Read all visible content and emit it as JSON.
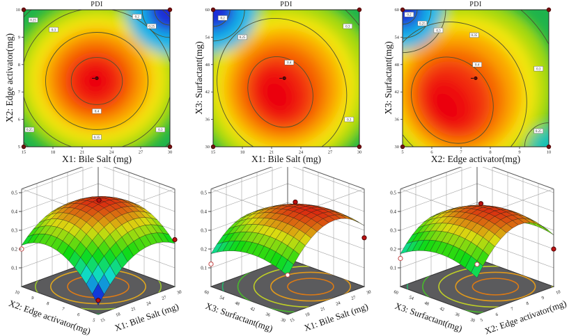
{
  "figure": {
    "background": "#ffffff",
    "palette": {
      "blue": "#1d2fd8",
      "cyan": "#12b6e8",
      "green": "#1eb34c",
      "yellow_green": "#a8d90f",
      "yellow": "#f4e609",
      "amber": "#fba603",
      "orange": "#f66a05",
      "red_orange": "#f23109",
      "red": "#ee0d10",
      "floor_gray": "#5b5b5d",
      "design_point": "#7c0c0c"
    }
  },
  "chart_data": [
    {
      "type": "contour",
      "title": "PDI",
      "xlabel": "X1: Bile Salt (mg)",
      "ylabel": "X2: Edge activator(mg)",
      "xlim": [
        15,
        30
      ],
      "ylim": [
        5,
        10
      ],
      "x_ticks": [
        15,
        18,
        21,
        24,
        27,
        30
      ],
      "y_ticks": [
        5,
        6,
        7,
        8,
        9,
        10
      ],
      "z_levels": [
        0.2,
        0.25,
        0.3,
        0.35,
        0.4
      ],
      "optimum": {
        "x": 22.5,
        "y": 7.5
      },
      "base": "#1eb34c",
      "blobs": [
        {
          "cx": 0.5,
          "cy": 0.51,
          "rx": 0.58,
          "ry": 0.58,
          "rot": 0,
          "c": "#a8d90f"
        },
        {
          "cx": 0.5,
          "cy": 0.51,
          "rx": 0.475,
          "ry": 0.475,
          "rot": 0,
          "c": "#f4e609"
        },
        {
          "cx": 0.5,
          "cy": 0.51,
          "rx": 0.375,
          "ry": 0.375,
          "rot": 0,
          "c": "#fba603"
        },
        {
          "cx": 0.49,
          "cy": 0.51,
          "rx": 0.285,
          "ry": 0.29,
          "rot": 0,
          "c": "#f66a05"
        },
        {
          "cx": 0.49,
          "cy": 0.52,
          "rx": 0.205,
          "ry": 0.21,
          "rot": 0,
          "c": "#f23109"
        },
        {
          "cx": 0.49,
          "cy": 0.52,
          "rx": 0.13,
          "ry": 0.135,
          "rot": 0,
          "c": "#ee0d10"
        },
        {
          "cx": 0.49,
          "cy": 0.52,
          "rx": 0.065,
          "ry": 0.07,
          "rot": 0,
          "c": "#ea0511"
        },
        {
          "cx": 1.0,
          "cy": 0.0,
          "rx": 0.3,
          "ry": 0.32,
          "rot": 0,
          "c": "#12b6e8"
        },
        {
          "cx": 1.0,
          "cy": 0.0,
          "rx": 0.155,
          "ry": 0.165,
          "rot": 0,
          "c": "#1d2fd8"
        }
      ],
      "rings": [
        {
          "cx": 0.5,
          "cy": 0.52,
          "rx": 0.175,
          "ry": 0.172,
          "rot": 0
        },
        {
          "cx": 0.5,
          "cy": 0.52,
          "rx": 0.35,
          "ry": 0.355,
          "rot": 0
        },
        {
          "cx": 0.5,
          "cy": 0.51,
          "rx": 0.515,
          "ry": 0.52,
          "rot": 0
        },
        {
          "cx": 0.5,
          "cy": 0.51,
          "rx": 0.67,
          "ry": 0.685,
          "rot": 0
        },
        {
          "cx": 1.0,
          "cy": 0.0,
          "rx": 0.105,
          "ry": 0.112,
          "rot": 0
        },
        {
          "cx": 1.0,
          "cy": 0.0,
          "rx": 0.19,
          "ry": 0.202,
          "rot": 0
        }
      ],
      "labels": [
        {
          "v": "0.25",
          "x": 0.065,
          "y": 0.075
        },
        {
          "v": "0.3",
          "x": 0.205,
          "y": 0.145
        },
        {
          "v": "0.2",
          "x": 0.775,
          "y": 0.05
        },
        {
          "v": "0.25",
          "x": 0.875,
          "y": 0.12
        },
        {
          "v": "0.4",
          "x": 0.5,
          "y": 0.74
        },
        {
          "v": "0.35",
          "x": 0.5,
          "y": 0.93
        },
        {
          "v": "0.25",
          "x": 0.04,
          "y": 0.875
        },
        {
          "v": "0.3",
          "x": 0.935,
          "y": 0.875
        }
      ]
    },
    {
      "type": "contour",
      "title": "PDI",
      "xlabel": "X1: Bile Salt (mg)",
      "ylabel": "X3: Surfactant(mg)",
      "xlim": [
        15,
        30
      ],
      "ylim": [
        30,
        60
      ],
      "x_ticks": [
        15,
        18,
        21,
        24,
        27,
        30
      ],
      "y_ticks": [
        30,
        36,
        42,
        48,
        54,
        60
      ],
      "z_levels": [
        0.2,
        0.25,
        0.3,
        0.35,
        0.4
      ],
      "optimum": {
        "x": 22.3,
        "y": 45
      },
      "base": "#1eb34c",
      "blobs": [
        {
          "cx": 0.5,
          "cy": 0.55,
          "rx": 0.62,
          "ry": 0.63,
          "rot": -28,
          "c": "#a8d90f"
        },
        {
          "cx": 0.49,
          "cy": 0.56,
          "rx": 0.5,
          "ry": 0.53,
          "rot": -28,
          "c": "#f4e609"
        },
        {
          "cx": 0.48,
          "cy": 0.57,
          "rx": 0.405,
          "ry": 0.43,
          "rot": -28,
          "c": "#fba603"
        },
        {
          "cx": 0.47,
          "cy": 0.58,
          "rx": 0.31,
          "ry": 0.34,
          "rot": -28,
          "c": "#f66a05"
        },
        {
          "cx": 0.46,
          "cy": 0.6,
          "rx": 0.22,
          "ry": 0.26,
          "rot": -28,
          "c": "#f23109"
        },
        {
          "cx": 0.44,
          "cy": 0.61,
          "rx": 0.145,
          "ry": 0.19,
          "rot": -28,
          "c": "#ee0d10"
        },
        {
          "cx": 0.43,
          "cy": 0.63,
          "rx": 0.075,
          "ry": 0.105,
          "rot": -28,
          "c": "#ea0511"
        },
        {
          "cx": 0.0,
          "cy": 0.0,
          "rx": 0.3,
          "ry": 0.31,
          "rot": 0,
          "c": "#12b6e8"
        },
        {
          "cx": 0.0,
          "cy": 0.0,
          "rx": 0.15,
          "ry": 0.16,
          "rot": 0,
          "c": "#1d2fd8"
        }
      ],
      "rings": [
        {
          "cx": 0.46,
          "cy": 0.6,
          "rx": 0.215,
          "ry": 0.265,
          "rot": -28
        },
        {
          "cx": 0.47,
          "cy": 0.57,
          "rx": 0.43,
          "ry": 0.52,
          "rot": -28
        },
        {
          "cx": 0.49,
          "cy": 0.55,
          "rx": 0.65,
          "ry": 0.78,
          "rot": -28
        },
        {
          "cx": 0.0,
          "cy": 0.0,
          "rx": 0.115,
          "ry": 0.122,
          "rot": 0
        },
        {
          "cx": 0.0,
          "cy": 0.0,
          "rx": 0.215,
          "ry": 0.228,
          "rot": 0
        }
      ],
      "labels": [
        {
          "v": "0.2",
          "x": 0.065,
          "y": 0.06
        },
        {
          "v": "0.25",
          "x": 0.2,
          "y": 0.2
        },
        {
          "v": "0.4",
          "x": 0.52,
          "y": 0.385
        },
        {
          "v": "0.3",
          "x": 0.92,
          "y": 0.12
        },
        {
          "v": "0.3",
          "x": 0.93,
          "y": 0.8
        }
      ]
    },
    {
      "type": "contour",
      "title": "PDI",
      "xlabel": "X2: Edge activator(mg)",
      "ylabel": "X3: Surfactant(mg)",
      "xlim": [
        5,
        10
      ],
      "ylim": [
        30,
        60
      ],
      "x_ticks": [
        5,
        6,
        7,
        8,
        9,
        10
      ],
      "y_ticks": [
        30,
        36,
        42,
        48,
        54,
        60
      ],
      "z_levels": [
        0.2,
        0.25,
        0.3,
        0.35,
        0.4
      ],
      "optimum": {
        "x": 7.5,
        "y": 45
      },
      "base": "#1eb34c",
      "blobs": [
        {
          "cx": 0.43,
          "cy": 0.57,
          "rx": 0.62,
          "ry": 0.65,
          "rot": -35,
          "c": "#a8d90f"
        },
        {
          "cx": 0.41,
          "cy": 0.59,
          "rx": 0.515,
          "ry": 0.55,
          "rot": -35,
          "c": "#f4e609"
        },
        {
          "cx": 0.39,
          "cy": 0.61,
          "rx": 0.42,
          "ry": 0.46,
          "rot": -35,
          "c": "#fba603"
        },
        {
          "cx": 0.37,
          "cy": 0.63,
          "rx": 0.325,
          "ry": 0.37,
          "rot": -35,
          "c": "#f66a05"
        },
        {
          "cx": 0.35,
          "cy": 0.65,
          "rx": 0.235,
          "ry": 0.285,
          "rot": -35,
          "c": "#f23109"
        },
        {
          "cx": 0.32,
          "cy": 0.68,
          "rx": 0.15,
          "ry": 0.205,
          "rot": -35,
          "c": "#ee0d10"
        },
        {
          "cx": 0.29,
          "cy": 0.71,
          "rx": 0.075,
          "ry": 0.115,
          "rot": -35,
          "c": "#ea0511"
        },
        {
          "cx": 0.0,
          "cy": 0.0,
          "rx": 0.28,
          "ry": 0.29,
          "rot": 0,
          "c": "#12b6e8"
        },
        {
          "cx": 0.0,
          "cy": 0.0,
          "rx": 0.135,
          "ry": 0.14,
          "rot": 0,
          "c": "#1d2fd8"
        },
        {
          "cx": 1.0,
          "cy": 1.0,
          "rx": 0.135,
          "ry": 0.14,
          "rot": 0,
          "c": "#16c2b4"
        }
      ],
      "rings": [
        {
          "cx": 0.34,
          "cy": 0.66,
          "rx": 0.265,
          "ry": 0.33,
          "rot": -35
        },
        {
          "cx": 0.37,
          "cy": 0.62,
          "rx": 0.46,
          "ry": 0.55,
          "rot": -35
        },
        {
          "cx": 0.41,
          "cy": 0.57,
          "rx": 0.66,
          "ry": 0.79,
          "rot": -35
        },
        {
          "cx": 0.0,
          "cy": 0.0,
          "rx": 0.1,
          "ry": 0.106,
          "rot": 0
        },
        {
          "cx": 0.0,
          "cy": 0.0,
          "rx": 0.195,
          "ry": 0.207,
          "rot": 0
        },
        {
          "cx": 0.0,
          "cy": 0.0,
          "rx": 0.295,
          "ry": 0.313,
          "rot": 0
        },
        {
          "cx": 1.0,
          "cy": 1.0,
          "rx": 0.165,
          "ry": 0.175,
          "rot": 0
        }
      ],
      "labels": [
        {
          "v": "0.2",
          "x": 0.045,
          "y": 0.035
        },
        {
          "v": "0.25",
          "x": 0.135,
          "y": 0.1
        },
        {
          "v": "0.3",
          "x": 0.245,
          "y": 0.15
        },
        {
          "v": "0.35",
          "x": 0.49,
          "y": 0.185
        },
        {
          "v": "0.4",
          "x": 0.51,
          "y": 0.4
        },
        {
          "v": "0.3",
          "x": 0.93,
          "y": 0.43
        },
        {
          "v": "0.25",
          "x": 0.93,
          "y": 0.885
        }
      ]
    },
    {
      "type": "surface_3d",
      "response": "PDI",
      "right_axis": {
        "label": "X1: Bile Salt (mg)",
        "ticks": [
          15,
          18,
          21,
          24,
          27,
          30
        ]
      },
      "left_axis": {
        "label": "X2: Edge activator(mg)",
        "ticks": [
          5,
          6,
          7,
          8,
          9,
          10
        ]
      },
      "z_ticks": [
        0.1,
        0.2,
        0.3,
        0.4,
        0.5
      ],
      "zlim": [
        0.1,
        0.5
      ],
      "model": {
        "c0": 0.42,
        "ca": -0.11,
        "cb": -0.12,
        "da": 0.055,
        "db": 0.05,
        "fab": -0.035
      },
      "points": [
        {
          "a": 0.56,
          "b": 0.55,
          "dz": 0.015,
          "s": "red"
        },
        {
          "a": 0.0,
          "b": 0.0,
          "z": 0.075,
          "s": "red"
        },
        {
          "a": 0.0,
          "b": 1.0,
          "z": 0.2,
          "s": "open"
        },
        {
          "a": 1.0,
          "b": 0.0,
          "z": 0.25,
          "s": "red"
        }
      ],
      "floor": {
        "center": [
          0.5,
          0.5
        ],
        "rings": [
          {
            "r": 1.0,
            "c": "#1fae45"
          },
          {
            "r": 0.82,
            "c": "#9ac82d"
          },
          {
            "r": 0.62,
            "c": "#e0a81e"
          },
          {
            "r": 0.4,
            "c": "#de7b16"
          }
        ]
      }
    },
    {
      "type": "surface_3d",
      "response": "PDI",
      "right_axis": {
        "label": "X1: Bile Salt (mg)",
        "ticks": [
          15,
          18,
          21,
          24,
          27,
          30
        ]
      },
      "left_axis": {
        "label": "X3: Surfactant(mg)",
        "ticks": [
          30,
          36,
          42,
          48,
          54,
          60
        ]
      },
      "z_ticks": [
        0.1,
        0.2,
        0.3,
        0.4,
        0.5
      ],
      "zlim": [
        0.1,
        0.5
      ],
      "model": {
        "c0": 0.42,
        "ca": -0.14,
        "cb": -0.06,
        "da": 0.03,
        "db": -0.045,
        "fab": -0.03
      },
      "points": [
        {
          "a": 0.6,
          "b": 0.5,
          "dz": 0.015,
          "s": "red"
        },
        {
          "a": 0.0,
          "b": 1.0,
          "z": 0.12,
          "s": "open"
        },
        {
          "a": 0.0,
          "b": 0.0,
          "z": 0.21,
          "s": "open"
        },
        {
          "a": 1.0,
          "b": 0.0,
          "z": 0.26,
          "s": "red"
        }
      ],
      "floor": {
        "center": [
          0.65,
          0.35
        ],
        "rings": [
          {
            "r": 1.35,
            "c": "#2ec4a4"
          },
          {
            "r": 1.15,
            "c": "#2ab36c"
          },
          {
            "r": 0.95,
            "c": "#49b72d"
          },
          {
            "r": 0.74,
            "c": "#bfcf26"
          },
          {
            "r": 0.52,
            "c": "#e0991c"
          },
          {
            "r": 0.3,
            "c": "#dd7a14"
          }
        ]
      }
    },
    {
      "type": "surface_3d",
      "response": "PDI",
      "right_axis": {
        "label": "X2: Edge activator(mg)",
        "ticks": [
          5,
          6,
          7,
          8,
          9,
          10
        ]
      },
      "left_axis": {
        "label": "X3: Surfactant(mg)",
        "ticks": [
          30,
          36,
          42,
          48,
          54,
          60
        ]
      },
      "z_ticks": [
        0.1,
        0.2,
        0.3,
        0.4,
        0.5
      ],
      "zlim": [
        0.1,
        0.5
      ],
      "model": {
        "c0": 0.42,
        "ca": -0.16,
        "cb": -0.065,
        "da": 0.01,
        "db": -0.04,
        "fab": -0.03
      },
      "points": [
        {
          "a": 0.55,
          "b": 0.5,
          "dz": 0.015,
          "s": "red"
        },
        {
          "a": 0.0,
          "b": 1.0,
          "z": 0.15,
          "s": "open"
        },
        {
          "a": 0.06,
          "b": 0.06,
          "s": "open"
        },
        {
          "a": 1.0,
          "b": 0.0,
          "z": 0.2,
          "s": "red"
        }
      ],
      "floor": {
        "center": [
          0.62,
          0.38
        ],
        "rings": [
          {
            "r": 1.35,
            "c": "#2ec4a4"
          },
          {
            "r": 1.15,
            "c": "#2ab36c"
          },
          {
            "r": 0.95,
            "c": "#49b72d"
          },
          {
            "r": 0.74,
            "c": "#bfcf26"
          },
          {
            "r": 0.52,
            "c": "#e0991c"
          },
          {
            "r": 0.3,
            "c": "#dd7a14"
          }
        ]
      }
    }
  ]
}
